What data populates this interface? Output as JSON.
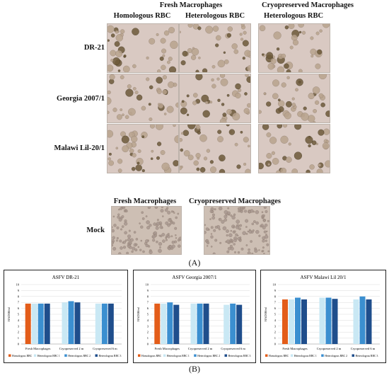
{
  "panel_a": {
    "group_headers": [
      "Fresh Macrophages",
      "Cryopreserved Macrophages"
    ],
    "column_headers": [
      "Homologous RBC",
      "Heterologous RBC",
      "Heterologous RBC"
    ],
    "row_labels": [
      "DR-21",
      "Georgia 2007/1",
      "Malawi Lil-20/1"
    ],
    "mock": {
      "row_label": "Mock",
      "column_headers": [
        "Fresh Macrophages",
        "Cryopreserved Macrophages"
      ]
    },
    "label": "(A)"
  },
  "panel_b": {
    "label": "(B)"
  },
  "colors": {
    "homologous": "#e35d1a",
    "het1": "#c9e8f4",
    "het2": "#3b8fd0",
    "het3": "#1f4e8c"
  },
  "chart_data": [
    {
      "type": "bar",
      "title": "ASFV DR-21",
      "ylabel": "HAD50/ml",
      "ylim": [
        0,
        10
      ],
      "yticks": [
        "0",
        "1",
        "2",
        "3",
        "4",
        "5",
        "6",
        "7",
        "8",
        "9",
        "10"
      ],
      "categories": [
        "Fresh Macrophages",
        "Cryopreserved 2 m",
        "Cryopreserved 6 m"
      ],
      "series": [
        {
          "name": "Homologous RBC",
          "values": [
            6.8,
            null,
            null
          ]
        },
        {
          "name": "Heterologous RBC 1",
          "values": [
            6.8,
            7.0,
            6.8
          ]
        },
        {
          "name": "Heterologous RBC 2",
          "values": [
            6.8,
            7.2,
            6.8
          ]
        },
        {
          "name": "Heterologous RBC 3",
          "values": [
            6.8,
            7.0,
            6.8
          ]
        }
      ],
      "legend": "bottom"
    },
    {
      "type": "bar",
      "title": "ASFV Georgia 2007/1",
      "ylabel": "HAD50/ml",
      "ylim": [
        0,
        10
      ],
      "yticks": [
        "0",
        "1",
        "2",
        "3",
        "4",
        "5",
        "6",
        "7",
        "8",
        "9",
        "10"
      ],
      "categories": [
        "Fresh Macrophages",
        "Cryopreserved 2 m",
        "Cryopreserved 6 m"
      ],
      "series": [
        {
          "name": "Homologous RBC",
          "values": [
            6.8,
            null,
            null
          ]
        },
        {
          "name": "Heterologous RBC 1",
          "values": [
            6.8,
            6.8,
            6.6
          ]
        },
        {
          "name": "Heterologous RBC 2",
          "values": [
            7.0,
            6.8,
            6.8
          ]
        },
        {
          "name": "Heterologous RBC 3",
          "values": [
            6.6,
            6.8,
            6.6
          ]
        }
      ],
      "legend": "bottom"
    },
    {
      "type": "bar",
      "title": "ASFV Malawi Lil 20/1",
      "ylabel": "HAD50/ml",
      "ylim": [
        0,
        10
      ],
      "yticks": [
        "0",
        "1",
        "2",
        "3",
        "4",
        "5",
        "6",
        "7",
        "8",
        "9",
        "10"
      ],
      "categories": [
        "Fresh Macrophages",
        "Cryopreserved 2 m",
        "Cryopreserved 6 m"
      ],
      "series": [
        {
          "name": "Homologous RBC",
          "values": [
            7.5,
            null,
            null
          ]
        },
        {
          "name": "Heterologous RBC 1",
          "values": [
            7.5,
            7.8,
            7.5
          ]
        },
        {
          "name": "Heterologous RBC 2",
          "values": [
            7.8,
            7.8,
            8.0
          ]
        },
        {
          "name": "Heterologous RBC 3",
          "values": [
            7.5,
            7.6,
            7.5
          ]
        }
      ],
      "legend": "bottom"
    }
  ]
}
